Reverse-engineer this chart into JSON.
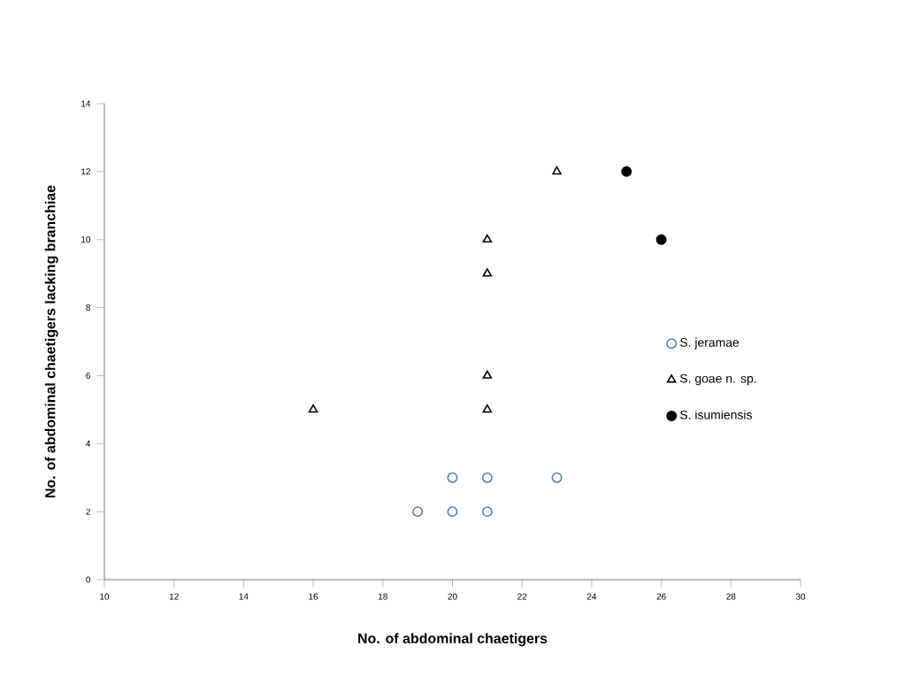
{
  "chart_data": {
    "type": "scatter",
    "xlabel": "No. of abdominal chaetigers",
    "ylabel": "No. of abdominal chaetigers lacking branchiae",
    "xlim": [
      10,
      30
    ],
    "xticks": [
      10,
      12,
      14,
      16,
      18,
      20,
      22,
      24,
      26,
      28,
      30
    ],
    "ylim": [
      0,
      14
    ],
    "yticks": [
      0,
      2,
      4,
      6,
      8,
      10,
      12,
      14
    ],
    "grid": false,
    "legend": "right",
    "series": [
      {
        "name": "S. jeramae",
        "color": "#4f81bd",
        "marker": "circle",
        "x": [
          19,
          20,
          20,
          21,
          21,
          23
        ],
        "values": [
          2,
          2,
          3,
          2,
          3,
          3
        ]
      },
      {
        "name": "S. goae n. sp.",
        "color": "#000000",
        "marker": "triangle",
        "x": [
          16,
          21,
          21,
          21,
          21,
          23
        ],
        "values": [
          5,
          5,
          6,
          9,
          10,
          12
        ]
      },
      {
        "name": "S. isumiensis",
        "color": "#000000",
        "x": [
          25,
          26
        ],
        "values": [
          12,
          10
        ]
      }
    ]
  }
}
